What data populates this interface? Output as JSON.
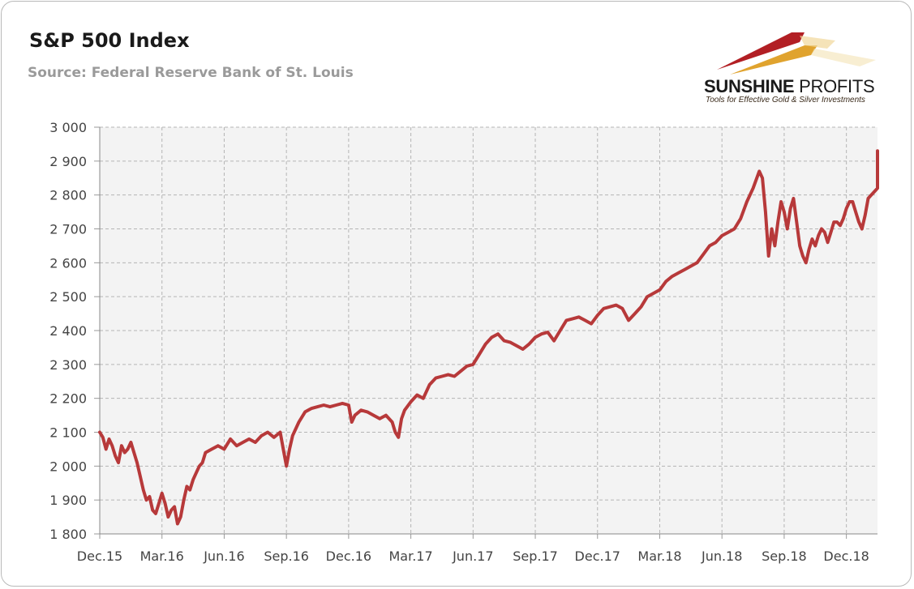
{
  "title": "S&P 500 Index",
  "subtitle": "Source: Federal Reserve Bank of St. Louis",
  "logo": {
    "name_bold": "SUNSHINE",
    "name_thin": " PROFITS",
    "tagline": "Tools for Effective Gold & Silver Investments"
  },
  "colors": {
    "line": "#b7393a",
    "plot_bg": "#f3f3f3",
    "grid": "#b5b5b5"
  },
  "chart_data": {
    "type": "line",
    "title": "S&P 500 Index",
    "xlabel": "",
    "ylabel": "",
    "ylim": [
      1800,
      3000
    ],
    "grid": true,
    "y_ticks": [
      1800,
      1900,
      2000,
      2100,
      2200,
      2300,
      2400,
      2500,
      2600,
      2700,
      2800,
      2900,
      3000
    ],
    "y_tick_labels": [
      "1 800",
      "1 900",
      "2 000",
      "2 100",
      "2 200",
      "2 300",
      "2 400",
      "2 500",
      "2 600",
      "2 700",
      "2 800",
      "2 900",
      "3 000"
    ],
    "x_tick_labels": [
      "Dec.15",
      "Mar.16",
      "Jun.16",
      "Sep.16",
      "Dec.16",
      "Mar.17",
      "Jun.17",
      "Sep.17",
      "Dec.17",
      "Mar.18",
      "Jun.18",
      "Sep.18",
      "Dec.18"
    ],
    "x_range_months": [
      0,
      12.5
    ],
    "series": [
      {
        "name": "",
        "points": [
          [
            0.0,
            2100
          ],
          [
            0.05,
            2085
          ],
          [
            0.1,
            2050
          ],
          [
            0.15,
            2080
          ],
          [
            0.2,
            2060
          ],
          [
            0.25,
            2030
          ],
          [
            0.3,
            2010
          ],
          [
            0.35,
            2060
          ],
          [
            0.4,
            2040
          ],
          [
            0.45,
            2050
          ],
          [
            0.5,
            2070
          ],
          [
            0.55,
            2040
          ],
          [
            0.6,
            2010
          ],
          [
            0.65,
            1970
          ],
          [
            0.7,
            1930
          ],
          [
            0.75,
            1900
          ],
          [
            0.8,
            1910
          ],
          [
            0.85,
            1870
          ],
          [
            0.9,
            1860
          ],
          [
            0.95,
            1890
          ],
          [
            1.0,
            1920
          ],
          [
            1.05,
            1890
          ],
          [
            1.1,
            1850
          ],
          [
            1.15,
            1870
          ],
          [
            1.2,
            1880
          ],
          [
            1.25,
            1830
          ],
          [
            1.3,
            1850
          ],
          [
            1.35,
            1900
          ],
          [
            1.4,
            1940
          ],
          [
            1.45,
            1930
          ],
          [
            1.5,
            1960
          ],
          [
            1.55,
            1980
          ],
          [
            1.6,
            2000
          ],
          [
            1.65,
            2010
          ],
          [
            1.7,
            2040
          ],
          [
            1.8,
            2050
          ],
          [
            1.9,
            2060
          ],
          [
            2.0,
            2050
          ],
          [
            2.1,
            2080
          ],
          [
            2.2,
            2060
          ],
          [
            2.3,
            2070
          ],
          [
            2.4,
            2080
          ],
          [
            2.5,
            2070
          ],
          [
            2.6,
            2090
          ],
          [
            2.7,
            2100
          ],
          [
            2.8,
            2085
          ],
          [
            2.9,
            2100
          ],
          [
            2.95,
            2050
          ],
          [
            3.0,
            2000
          ],
          [
            3.05,
            2050
          ],
          [
            3.1,
            2090
          ],
          [
            3.2,
            2130
          ],
          [
            3.3,
            2160
          ],
          [
            3.4,
            2170
          ],
          [
            3.5,
            2175
          ],
          [
            3.6,
            2180
          ],
          [
            3.7,
            2175
          ],
          [
            3.8,
            2180
          ],
          [
            3.9,
            2185
          ],
          [
            4.0,
            2180
          ],
          [
            4.05,
            2130
          ],
          [
            4.1,
            2150
          ],
          [
            4.2,
            2165
          ],
          [
            4.3,
            2160
          ],
          [
            4.4,
            2150
          ],
          [
            4.5,
            2140
          ],
          [
            4.6,
            2150
          ],
          [
            4.7,
            2130
          ],
          [
            4.75,
            2100
          ],
          [
            4.8,
            2085
          ],
          [
            4.85,
            2140
          ],
          [
            4.9,
            2165
          ],
          [
            5.0,
            2190
          ],
          [
            5.1,
            2210
          ],
          [
            5.2,
            2200
          ],
          [
            5.3,
            2240
          ],
          [
            5.4,
            2260
          ],
          [
            5.5,
            2265
          ],
          [
            5.6,
            2270
          ],
          [
            5.7,
            2265
          ],
          [
            5.8,
            2280
          ],
          [
            5.9,
            2295
          ],
          [
            6.0,
            2300
          ],
          [
            6.1,
            2330
          ],
          [
            6.2,
            2360
          ],
          [
            6.3,
            2380
          ],
          [
            6.4,
            2390
          ],
          [
            6.5,
            2370
          ],
          [
            6.6,
            2365
          ],
          [
            6.7,
            2355
          ],
          [
            6.8,
            2345
          ],
          [
            6.9,
            2360
          ],
          [
            7.0,
            2380
          ],
          [
            7.1,
            2390
          ],
          [
            7.2,
            2395
          ],
          [
            7.3,
            2370
          ],
          [
            7.4,
            2400
          ],
          [
            7.5,
            2430
          ],
          [
            7.6,
            2435
          ],
          [
            7.7,
            2440
          ],
          [
            7.8,
            2430
          ],
          [
            7.9,
            2420
          ],
          [
            8.0,
            2445
          ],
          [
            8.1,
            2465
          ],
          [
            8.2,
            2470
          ],
          [
            8.3,
            2475
          ],
          [
            8.4,
            2465
          ],
          [
            8.5,
            2430
          ],
          [
            8.6,
            2450
          ],
          [
            8.7,
            2470
          ],
          [
            8.8,
            2500
          ],
          [
            8.9,
            2510
          ],
          [
            9.0,
            2520
          ],
          [
            9.1,
            2545
          ],
          [
            9.2,
            2560
          ],
          [
            9.3,
            2570
          ],
          [
            9.4,
            2580
          ],
          [
            9.5,
            2590
          ],
          [
            9.6,
            2600
          ],
          [
            9.7,
            2625
          ],
          [
            9.8,
            2650
          ],
          [
            9.9,
            2660
          ],
          [
            10.0,
            2680
          ],
          [
            10.1,
            2690
          ],
          [
            10.2,
            2700
          ],
          [
            10.3,
            2730
          ],
          [
            10.4,
            2780
          ],
          [
            10.5,
            2820
          ],
          [
            10.6,
            2870
          ],
          [
            10.65,
            2850
          ],
          [
            10.7,
            2750
          ],
          [
            10.75,
            2620
          ],
          [
            10.8,
            2700
          ],
          [
            10.85,
            2650
          ],
          [
            10.9,
            2720
          ],
          [
            10.95,
            2780
          ],
          [
            11.0,
            2750
          ],
          [
            11.05,
            2700
          ],
          [
            11.1,
            2760
          ],
          [
            11.15,
            2790
          ],
          [
            11.2,
            2720
          ],
          [
            11.25,
            2650
          ],
          [
            11.3,
            2620
          ],
          [
            11.35,
            2600
          ],
          [
            11.4,
            2640
          ],
          [
            11.45,
            2670
          ],
          [
            11.5,
            2650
          ],
          [
            11.55,
            2680
          ],
          [
            11.6,
            2700
          ],
          [
            11.65,
            2690
          ],
          [
            11.7,
            2660
          ],
          [
            11.75,
            2690
          ],
          [
            11.8,
            2720
          ],
          [
            11.85,
            2720
          ],
          [
            11.9,
            2710
          ],
          [
            11.95,
            2730
          ],
          [
            12.0,
            2760
          ],
          [
            12.05,
            2780
          ],
          [
            12.1,
            2780
          ],
          [
            12.15,
            2750
          ],
          [
            12.2,
            2720
          ],
          [
            12.25,
            2700
          ],
          [
            12.3,
            2740
          ],
          [
            12.35,
            2790
          ],
          [
            12.4,
            2800
          ],
          [
            12.45,
            2810
          ],
          [
            12.5,
            2820
          ],
          [
            12.55,
            2830
          ],
          [
            12.6,
            2850
          ],
          [
            12.65,
            2870
          ],
          [
            12.7,
            2880
          ],
          [
            12.75,
            2900
          ],
          [
            12.8,
            2910
          ],
          [
            12.85,
            2900
          ],
          [
            12.9,
            2890
          ],
          [
            12.95,
            2920
          ],
          [
            13.0,
            2930
          ]
        ]
      }
    ]
  }
}
